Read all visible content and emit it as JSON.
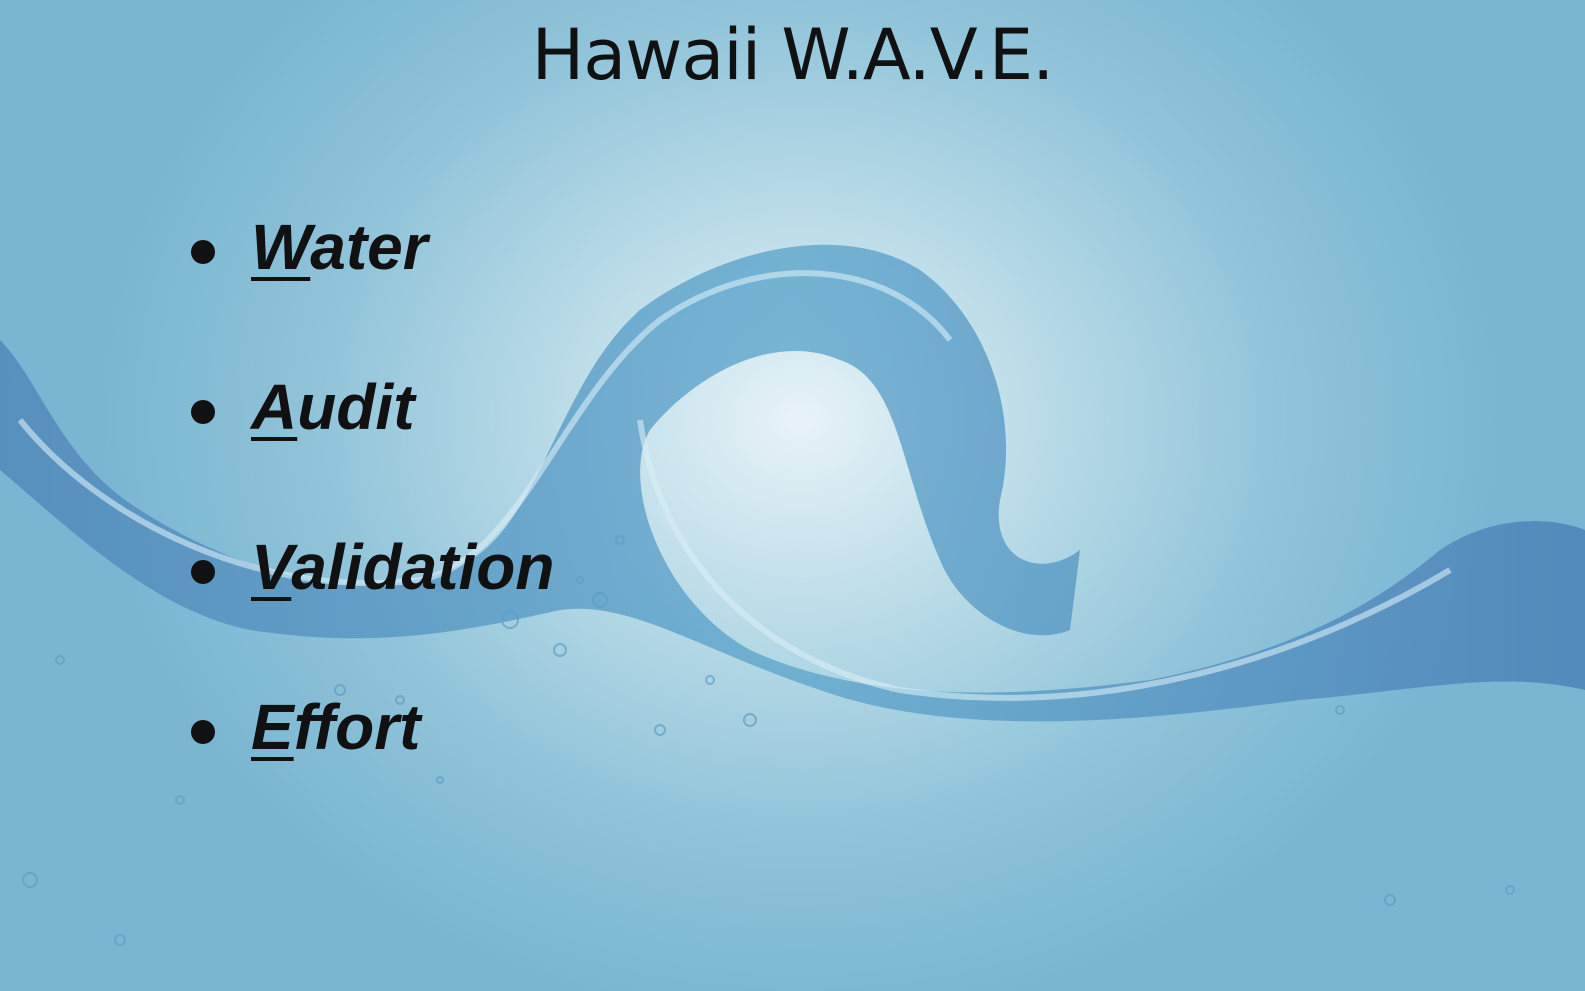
{
  "slide": {
    "title": "Hawaii W.A.V.E.",
    "bullets": [
      {
        "initial": "W",
        "rest": "ater"
      },
      {
        "initial": "A",
        "rest": "udit"
      },
      {
        "initial": "V",
        "rest": "alidation"
      },
      {
        "initial": "E",
        "rest": "ffort"
      }
    ]
  }
}
